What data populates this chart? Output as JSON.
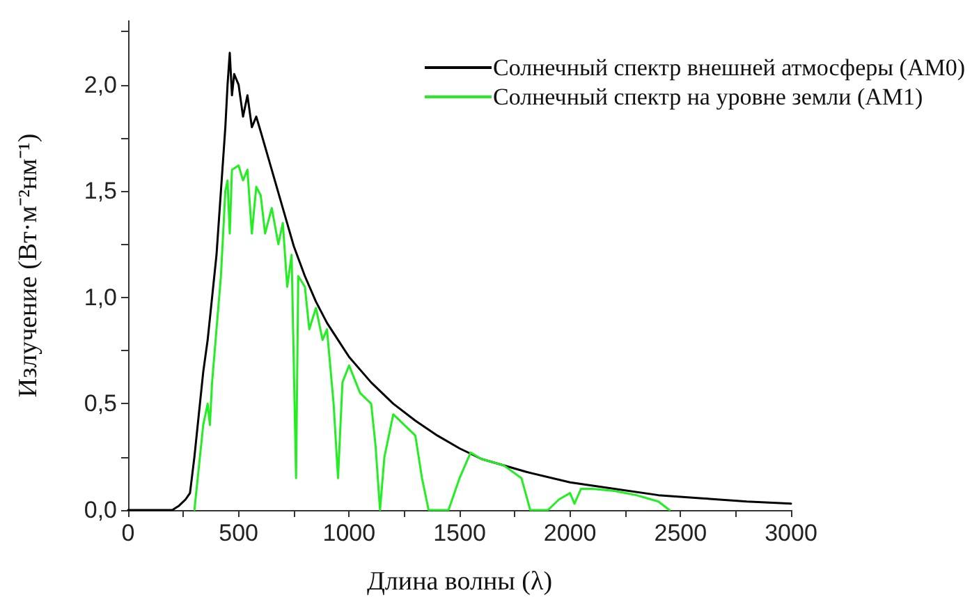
{
  "chart_data": {
    "type": "line",
    "xlabel": "Длина волны (λ)",
    "ylabel": "Излучение (Вт·м⁻²нм⁻¹)",
    "xlim": [
      0,
      3000
    ],
    "xticks": [
      0,
      {
        "value": 250,
        "label": null
      },
      500,
      {
        "value": 750,
        "label": null
      },
      1000,
      {
        "value": 1250,
        "label": null
      },
      1500,
      {
        "value": 1750,
        "label": null
      },
      2000,
      {
        "value": 2250,
        "label": null
      },
      2500,
      {
        "value": 2750,
        "label": null
      },
      3000
    ],
    "ylim": [
      0,
      2.3
    ],
    "yticks": [
      {
        "value": 0,
        "label": "0,0"
      },
      {
        "value": 0.25,
        "label": null
      },
      {
        "value": 0.5,
        "label": "0,5"
      },
      {
        "value": 0.75,
        "label": null
      },
      {
        "value": 1.0,
        "label": "1,0"
      },
      {
        "value": 1.25,
        "label": null
      },
      {
        "value": 1.5,
        "label": "1,5"
      },
      {
        "value": 1.75,
        "label": null
      },
      {
        "value": 2.0,
        "label": "2,0"
      },
      {
        "value": 2.25,
        "label": null
      }
    ],
    "grid": false,
    "legend": "top right",
    "marker": "none",
    "line_style": "solid",
    "series": [
      {
        "name": "Солнечный спектр внешней атмосферы (AM0)",
        "color": "#000000",
        "x": [
          0,
          200,
          230,
          260,
          280,
          300,
          320,
          340,
          360,
          380,
          400,
          420,
          440,
          450,
          460,
          470,
          480,
          500,
          520,
          540,
          560,
          580,
          600,
          650,
          700,
          750,
          800,
          850,
          900,
          950,
          1000,
          1100,
          1200,
          1300,
          1400,
          1500,
          1600,
          1800,
          2000,
          2200,
          2400,
          2600,
          2800,
          3000
        ],
        "values": [
          0,
          0,
          0.02,
          0.05,
          0.08,
          0.25,
          0.45,
          0.65,
          0.8,
          1.0,
          1.2,
          1.5,
          1.8,
          2.0,
          2.15,
          1.95,
          2.05,
          2.0,
          1.85,
          1.95,
          1.8,
          1.85,
          1.78,
          1.6,
          1.42,
          1.24,
          1.1,
          0.98,
          0.88,
          0.8,
          0.72,
          0.6,
          0.5,
          0.42,
          0.35,
          0.29,
          0.24,
          0.18,
          0.13,
          0.1,
          0.07,
          0.055,
          0.04,
          0.03
        ]
      },
      {
        "name": "Солнечный спектр на уровне земли (AM1)",
        "color": "#22ee22",
        "x": [
          300,
          320,
          340,
          360,
          370,
          380,
          400,
          420,
          430,
          440,
          450,
          460,
          470,
          500,
          520,
          540,
          560,
          580,
          600,
          620,
          650,
          680,
          700,
          720,
          740,
          760,
          770,
          800,
          820,
          850,
          880,
          900,
          930,
          950,
          970,
          1000,
          1050,
          1100,
          1120,
          1140,
          1160,
          1200,
          1250,
          1300,
          1330,
          1360,
          1400,
          1450,
          1500,
          1550,
          1600,
          1700,
          1780,
          1820,
          1900,
          1950,
          2000,
          2020,
          2050,
          2100,
          2200,
          2300,
          2400,
          2450
        ],
        "values": [
          0,
          0.2,
          0.4,
          0.5,
          0.4,
          0.6,
          0.85,
          1.1,
          1.3,
          1.5,
          1.55,
          1.3,
          1.6,
          1.62,
          1.55,
          1.6,
          1.3,
          1.52,
          1.48,
          1.3,
          1.42,
          1.25,
          1.35,
          1.05,
          1.2,
          0.15,
          1.1,
          1.05,
          0.85,
          0.95,
          0.8,
          0.85,
          0.5,
          0.15,
          0.6,
          0.68,
          0.55,
          0.5,
          0.3,
          0.0,
          0.25,
          0.45,
          0.4,
          0.35,
          0.15,
          0.0,
          0.0,
          0.0,
          0.15,
          0.27,
          0.24,
          0.21,
          0.15,
          0.0,
          0.0,
          0.05,
          0.08,
          0.03,
          0.1,
          0.1,
          0.09,
          0.07,
          0.04,
          0.0
        ]
      }
    ]
  }
}
